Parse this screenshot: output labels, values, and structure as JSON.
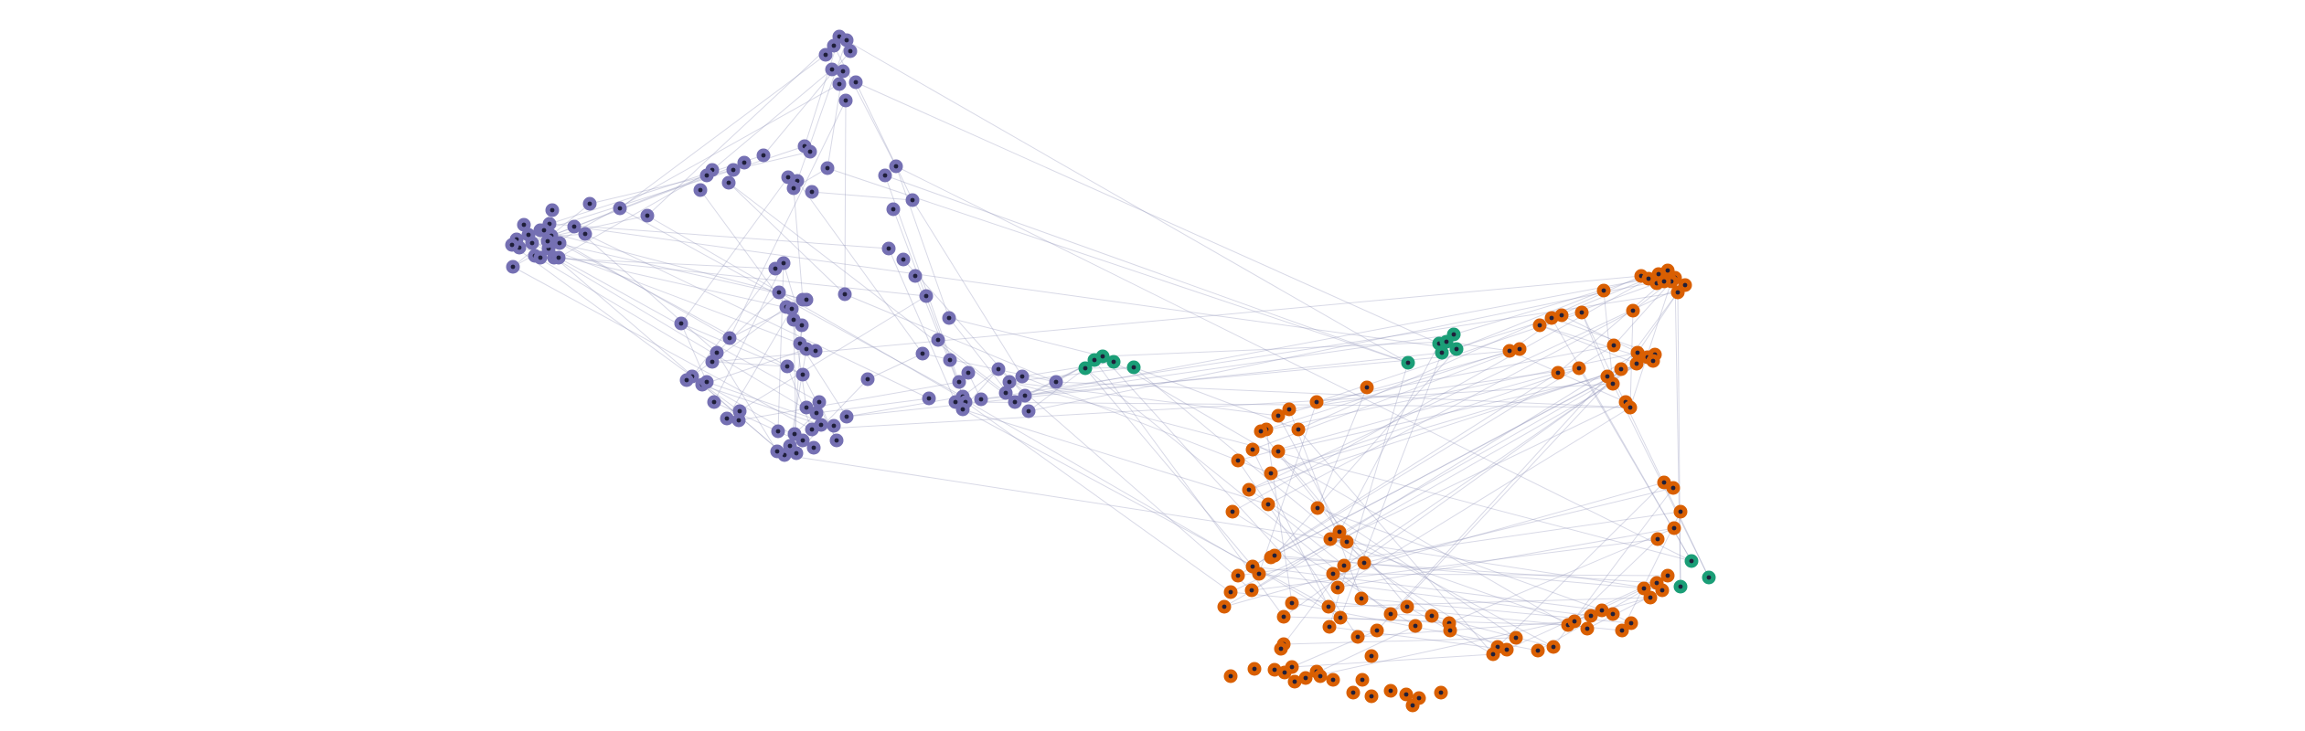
{
  "graph": {
    "colors": {
      "group_a": "#7570b3",
      "group_b": "#d95f02",
      "group_c": "#1b9e77",
      "edge": "#8f92b8",
      "center_dot": "#1f1f3a"
    },
    "groups": [
      "group_a",
      "group_b",
      "group_c"
    ]
  }
}
